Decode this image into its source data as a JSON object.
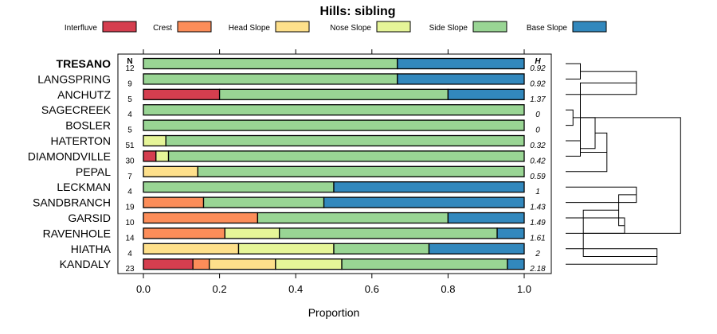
{
  "chart_data": {
    "type": "bar",
    "stacked": true,
    "orientation": "horizontal",
    "title": "Hills: sibling",
    "xlabel": "Proportion",
    "ylabel": "",
    "xlim": [
      0,
      1
    ],
    "xticks": [
      0,
      0.2,
      0.4,
      0.6,
      0.8,
      1
    ],
    "xtick_labels": [
      "0.0",
      "0.2",
      "0.4",
      "0.6",
      "0.8",
      "1.0"
    ],
    "n_header": "N",
    "h_header": "H",
    "legend_position": "top",
    "series": [
      {
        "name": "Interfluve",
        "color": "#d53e4f"
      },
      {
        "name": "Crest",
        "color": "#fc8d59"
      },
      {
        "name": "Head Slope",
        "color": "#fee08b"
      },
      {
        "name": "Nose Slope",
        "color": "#e6f598"
      },
      {
        "name": "Side Slope",
        "color": "#99d594"
      },
      {
        "name": "Base Slope",
        "color": "#3288bd"
      }
    ],
    "rows": [
      {
        "label": "TRESANO",
        "bold": true,
        "n": "12",
        "h": "0.92",
        "values": [
          0,
          0,
          0,
          0,
          0.667,
          0.333
        ]
      },
      {
        "label": "LANGSPRING",
        "bold": false,
        "n": "9",
        "h": "0.92",
        "values": [
          0,
          0,
          0,
          0,
          0.667,
          0.333
        ]
      },
      {
        "label": "ANCHUTZ",
        "bold": false,
        "n": "5",
        "h": "1.37",
        "values": [
          0.2,
          0,
          0,
          0,
          0.6,
          0.2
        ]
      },
      {
        "label": "SAGECREEK",
        "bold": false,
        "n": "4",
        "h": "0",
        "values": [
          0,
          0,
          0,
          0,
          1.0,
          0
        ]
      },
      {
        "label": "BOSLER",
        "bold": false,
        "n": "5",
        "h": "0",
        "values": [
          0,
          0,
          0,
          0,
          1.0,
          0
        ]
      },
      {
        "label": "HATERTON",
        "bold": false,
        "n": "51",
        "h": "0.32",
        "values": [
          0,
          0,
          0,
          0.059,
          0.941,
          0
        ]
      },
      {
        "label": "DIAMONDVILLE",
        "bold": false,
        "n": "30",
        "h": "0.42",
        "values": [
          0.033,
          0,
          0,
          0.033,
          0.934,
          0
        ]
      },
      {
        "label": "PEPAL",
        "bold": false,
        "n": "7",
        "h": "0.59",
        "values": [
          0,
          0,
          0.143,
          0,
          0.857,
          0
        ]
      },
      {
        "label": "LECKMAN",
        "bold": false,
        "n": "4",
        "h": "1",
        "values": [
          0,
          0,
          0,
          0,
          0.5,
          0.5
        ]
      },
      {
        "label": "SANDBRANCH",
        "bold": false,
        "n": "19",
        "h": "1.43",
        "values": [
          0,
          0.158,
          0,
          0,
          0.316,
          0.526
        ]
      },
      {
        "label": "GARSID",
        "bold": false,
        "n": "10",
        "h": "1.49",
        "values": [
          0,
          0.3,
          0,
          0,
          0.5,
          0.2
        ]
      },
      {
        "label": "RAVENHOLE",
        "bold": false,
        "n": "14",
        "h": "1.61",
        "values": [
          0,
          0.214,
          0,
          0.143,
          0.572,
          0.071
        ]
      },
      {
        "label": "HIATHA",
        "bold": false,
        "n": "4",
        "h": "2",
        "values": [
          0,
          0,
          0.25,
          0.25,
          0.25,
          0.25
        ]
      },
      {
        "label": "KANDALY",
        "bold": false,
        "n": "23",
        "h": "2.18",
        "values": [
          0.13,
          0.043,
          0.174,
          0.174,
          0.435,
          0.044
        ]
      }
    ],
    "dendrogram": {
      "merges": [
        [
          0,
          1,
          0.1
        ],
        [
          3,
          4,
          0.05
        ],
        [
          5,
          6,
          0.1
        ],
        [
          -2,
          -3,
          0.2
        ],
        [
          -4,
          7,
          0.28
        ],
        [
          -1,
          2,
          0.48
        ],
        [
          8,
          9,
          0.48
        ],
        [
          10,
          11,
          0.4
        ],
        [
          12,
          13,
          0.62
        ],
        [
          -7,
          -8,
          0.36
        ],
        [
          -9,
          -10,
          0.12
        ],
        [
          -6,
          -5,
          0.1
        ],
        [
          -12,
          -11,
          0.78
        ]
      ]
    }
  }
}
